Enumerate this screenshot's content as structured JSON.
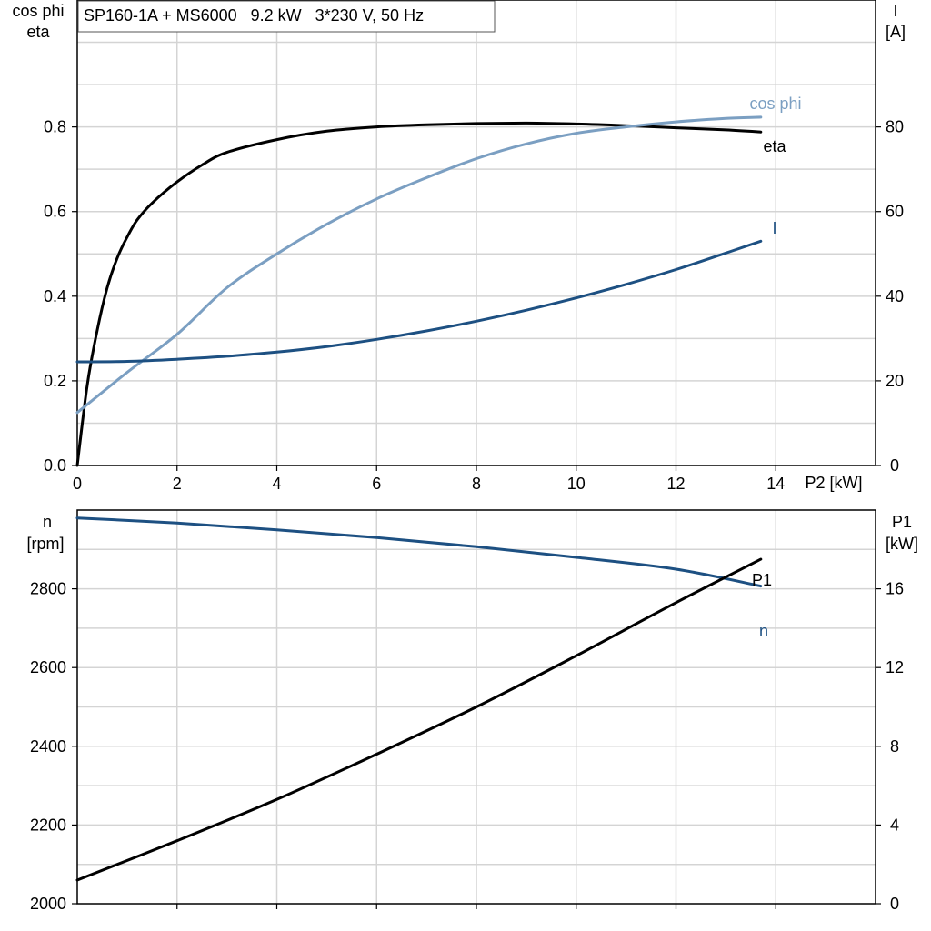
{
  "title": "SP160-1A + MS6000   9.2 kW   3*230 V, 50 Hz",
  "chart_data": [
    {
      "type": "line",
      "xlabel": "P2 [kW]",
      "ylabel_left": [
        "cos phi",
        "eta"
      ],
      "ylabel_right": [
        "I",
        "[A]"
      ],
      "xlim": [
        0,
        16
      ],
      "ylim_left": [
        0,
        1.1
      ],
      "ylim_right": [
        0,
        110
      ],
      "x_ticks": [
        0,
        2,
        4,
        6,
        8,
        10,
        12,
        14
      ],
      "x_tick_labels": [
        "0",
        "2",
        "4",
        "6",
        "8",
        "10",
        "12",
        "14"
      ],
      "y_left_ticks": [
        0.0,
        0.2,
        0.4,
        0.6,
        0.8
      ],
      "y_left_tick_labels": [
        "0.0",
        "0.2",
        "0.4",
        "0.6",
        "0.8"
      ],
      "y_right_ticks": [
        0,
        20,
        40,
        60,
        80
      ],
      "y_right_tick_labels": [
        "0",
        "20",
        "40",
        "60",
        "80"
      ],
      "grid": true,
      "series": [
        {
          "name": "eta",
          "axis": "left",
          "color": "#000000",
          "x": [
            0,
            0.2,
            0.4,
            0.6,
            0.8,
            1.0,
            1.2,
            1.5,
            2.0,
            2.5,
            3.0,
            4.0,
            5.0,
            6.0,
            7.0,
            8.0,
            9.0,
            10.0,
            11.0,
            12.0,
            13.0,
            13.7
          ],
          "values": [
            0.0,
            0.19,
            0.32,
            0.42,
            0.49,
            0.54,
            0.58,
            0.62,
            0.67,
            0.71,
            0.74,
            0.77,
            0.79,
            0.8,
            0.805,
            0.808,
            0.809,
            0.807,
            0.803,
            0.798,
            0.793,
            0.788
          ]
        },
        {
          "name": "cos phi",
          "axis": "left",
          "color": "#7b9fc2",
          "x": [
            0,
            1,
            2,
            3,
            4,
            5,
            6,
            7,
            8,
            9,
            10,
            11,
            12,
            13,
            13.7
          ],
          "values": [
            0.125,
            0.22,
            0.31,
            0.42,
            0.5,
            0.57,
            0.63,
            0.68,
            0.725,
            0.76,
            0.785,
            0.8,
            0.812,
            0.82,
            0.823
          ]
        },
        {
          "name": "I",
          "axis": "right",
          "color": "#1d5082",
          "x": [
            0,
            1,
            2,
            3,
            4,
            5,
            6,
            7,
            8,
            9,
            10,
            11,
            12,
            13,
            13.7
          ],
          "values": [
            24.5,
            24.6,
            25.1,
            25.8,
            26.8,
            28.1,
            29.8,
            31.8,
            34.1,
            36.7,
            39.6,
            42.8,
            46.3,
            50.2,
            53.0
          ]
        }
      ],
      "series_labels": [
        "cos phi",
        "eta",
        "I"
      ]
    },
    {
      "type": "line",
      "xlim": [
        0,
        16
      ],
      "ylabel_left": [
        "n",
        "[rpm]"
      ],
      "ylabel_right": [
        "P1",
        "[kW]"
      ],
      "ylim_left": [
        2000,
        3000
      ],
      "ylim_right": [
        0,
        20
      ],
      "y_left_ticks": [
        2000,
        2200,
        2400,
        2600,
        2800
      ],
      "y_left_tick_labels": [
        "2000",
        "2200",
        "2400",
        "2600",
        "2800"
      ],
      "y_right_ticks": [
        0,
        4,
        8,
        12,
        16
      ],
      "y_right_tick_labels": [
        "0",
        "4",
        "8",
        "12",
        "16"
      ],
      "grid": true,
      "series": [
        {
          "name": "n",
          "axis": "left",
          "color": "#1d5082",
          "x": [
            0,
            2,
            4,
            6,
            8,
            10,
            12,
            13.7
          ],
          "values": [
            2980,
            2967,
            2950,
            2930,
            2907,
            2880,
            2850,
            2807
          ]
        },
        {
          "name": "P1",
          "axis": "right",
          "color": "#000000",
          "x": [
            0,
            2,
            4,
            6,
            8,
            10,
            12,
            13.7
          ],
          "values": [
            1.2,
            3.2,
            5.3,
            7.6,
            10.0,
            12.6,
            15.3,
            17.5
          ]
        }
      ],
      "series_labels": [
        "P1",
        "n"
      ]
    }
  ]
}
